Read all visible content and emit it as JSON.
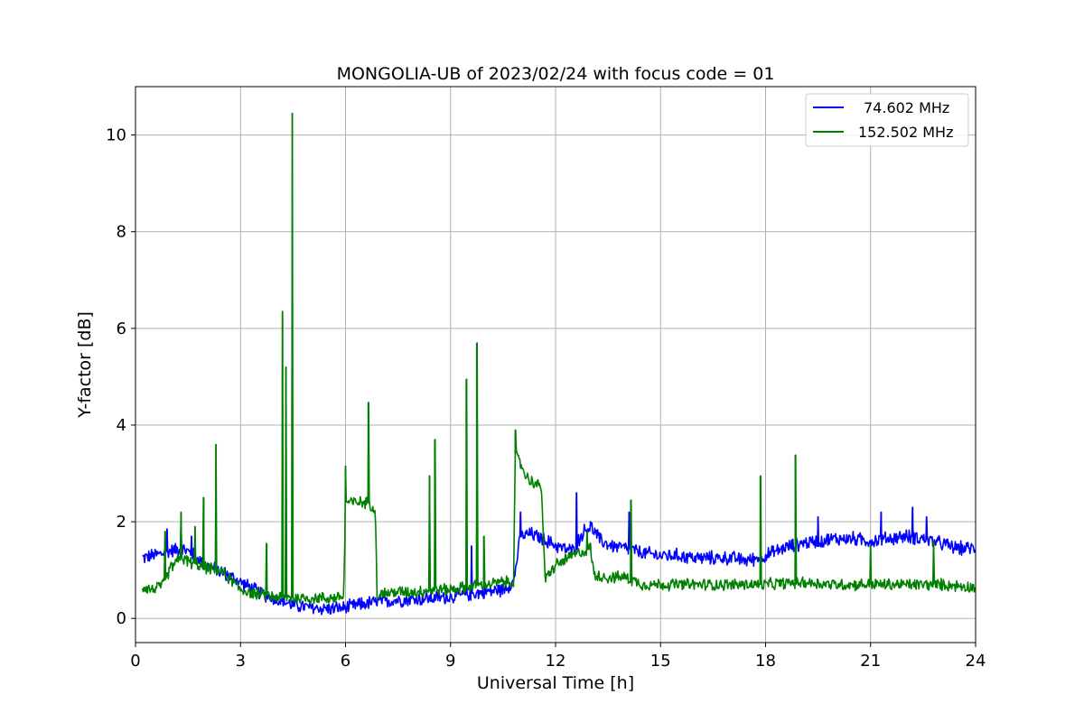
{
  "chart_data": {
    "type": "line",
    "title": "MONGOLIA-UB of 2023/02/24 with focus code = 01",
    "xlabel": "Universal Time [h]",
    "ylabel": "Y-factor [dB]",
    "xlim": [
      0,
      24
    ],
    "ylim": [
      -0.5,
      11
    ],
    "xticks": [
      0,
      3,
      6,
      9,
      12,
      15,
      18,
      21,
      24
    ],
    "yticks": [
      0,
      2,
      4,
      6,
      8,
      10
    ],
    "grid": true,
    "legend_position": "top-right",
    "series": [
      {
        "name": "74.602 MHz",
        "color": "#0000ff",
        "noise": 0.14,
        "x": [
          0.2,
          0.5,
          0.8,
          1.0,
          1.3,
          1.6,
          2.0,
          2.5,
          3.0,
          3.5,
          4.0,
          4.5,
          5.0,
          5.5,
          6.0,
          6.5,
          7.0,
          7.5,
          8.0,
          8.5,
          9.0,
          9.5,
          10.0,
          10.5,
          10.8,
          11.0,
          11.3,
          11.6,
          11.9,
          12.2,
          12.5,
          12.8,
          13.0,
          13.3,
          13.6,
          14.0,
          14.5,
          15.0,
          15.5,
          16.0,
          16.5,
          17.0,
          17.5,
          18.0,
          18.5,
          19.0,
          19.5,
          20.0,
          20.5,
          21.0,
          21.5,
          22.0,
          22.5,
          23.0,
          23.5,
          24.0
        ],
        "y": [
          1.25,
          1.3,
          1.35,
          1.4,
          1.45,
          1.35,
          1.1,
          0.95,
          0.75,
          0.55,
          0.4,
          0.28,
          0.22,
          0.2,
          0.22,
          0.3,
          0.35,
          0.38,
          0.4,
          0.42,
          0.45,
          0.5,
          0.55,
          0.6,
          0.75,
          1.7,
          1.75,
          1.65,
          1.55,
          1.45,
          1.4,
          1.8,
          1.9,
          1.6,
          1.5,
          1.45,
          1.35,
          1.3,
          1.3,
          1.25,
          1.25,
          1.25,
          1.2,
          1.3,
          1.45,
          1.55,
          1.6,
          1.65,
          1.65,
          1.6,
          1.65,
          1.7,
          1.65,
          1.55,
          1.45,
          1.45
        ],
        "spikes": [
          [
            0.9,
            1.85
          ],
          [
            1.3,
            1.9
          ],
          [
            1.6,
            1.7
          ],
          [
            9.6,
            1.5
          ],
          [
            11.0,
            2.2
          ],
          [
            12.6,
            2.6
          ],
          [
            13.0,
            2.0
          ],
          [
            14.1,
            2.2
          ],
          [
            19.5,
            2.1
          ],
          [
            21.3,
            2.2
          ],
          [
            22.2,
            2.3
          ],
          [
            22.6,
            2.1
          ]
        ]
      },
      {
        "name": "152.502 MHz",
        "color": "#008000",
        "noise": 0.12,
        "x": [
          0.2,
          0.5,
          0.8,
          1.0,
          1.3,
          1.6,
          2.0,
          2.5,
          3.0,
          3.5,
          4.0,
          4.5,
          5.0,
          5.5,
          5.95,
          6.0,
          6.3,
          6.6,
          6.85,
          6.9,
          7.5,
          8.0,
          8.5,
          9.0,
          9.5,
          10.0,
          10.5,
          10.8,
          10.85,
          11.2,
          11.6,
          11.7,
          12.0,
          12.5,
          13.0,
          13.1,
          13.5,
          14.0,
          14.5,
          15.0,
          16.0,
          17.0,
          18.0,
          19.0,
          20.0,
          21.0,
          22.0,
          23.0,
          24.0
        ],
        "y": [
          0.65,
          0.6,
          0.7,
          1.05,
          1.25,
          1.15,
          1.05,
          0.95,
          0.6,
          0.5,
          0.45,
          0.42,
          0.42,
          0.42,
          0.45,
          2.4,
          2.4,
          2.4,
          2.3,
          0.5,
          0.55,
          0.55,
          0.6,
          0.6,
          0.65,
          0.7,
          0.75,
          0.75,
          3.4,
          2.9,
          2.7,
          0.8,
          1.1,
          1.3,
          1.45,
          0.9,
          0.85,
          0.85,
          0.7,
          0.7,
          0.7,
          0.7,
          0.7,
          0.75,
          0.7,
          0.7,
          0.7,
          0.7,
          0.65
        ],
        "spikes": [
          [
            0.85,
            1.8
          ],
          [
            1.3,
            2.2
          ],
          [
            1.7,
            1.9
          ],
          [
            1.95,
            2.5
          ],
          [
            2.3,
            3.6
          ],
          [
            3.75,
            1.55
          ],
          [
            4.2,
            6.35
          ],
          [
            4.3,
            5.2
          ],
          [
            4.48,
            10.45
          ],
          [
            6.0,
            3.15
          ],
          [
            6.65,
            4.47
          ],
          [
            8.4,
            2.95
          ],
          [
            8.55,
            3.7
          ],
          [
            9.45,
            4.95
          ],
          [
            9.75,
            5.7
          ],
          [
            9.95,
            1.7
          ],
          [
            10.85,
            3.9
          ],
          [
            12.9,
            1.8
          ],
          [
            14.15,
            2.45
          ],
          [
            17.85,
            2.95
          ],
          [
            18.85,
            3.38
          ],
          [
            21.0,
            1.5
          ],
          [
            22.8,
            1.6
          ]
        ]
      }
    ]
  }
}
